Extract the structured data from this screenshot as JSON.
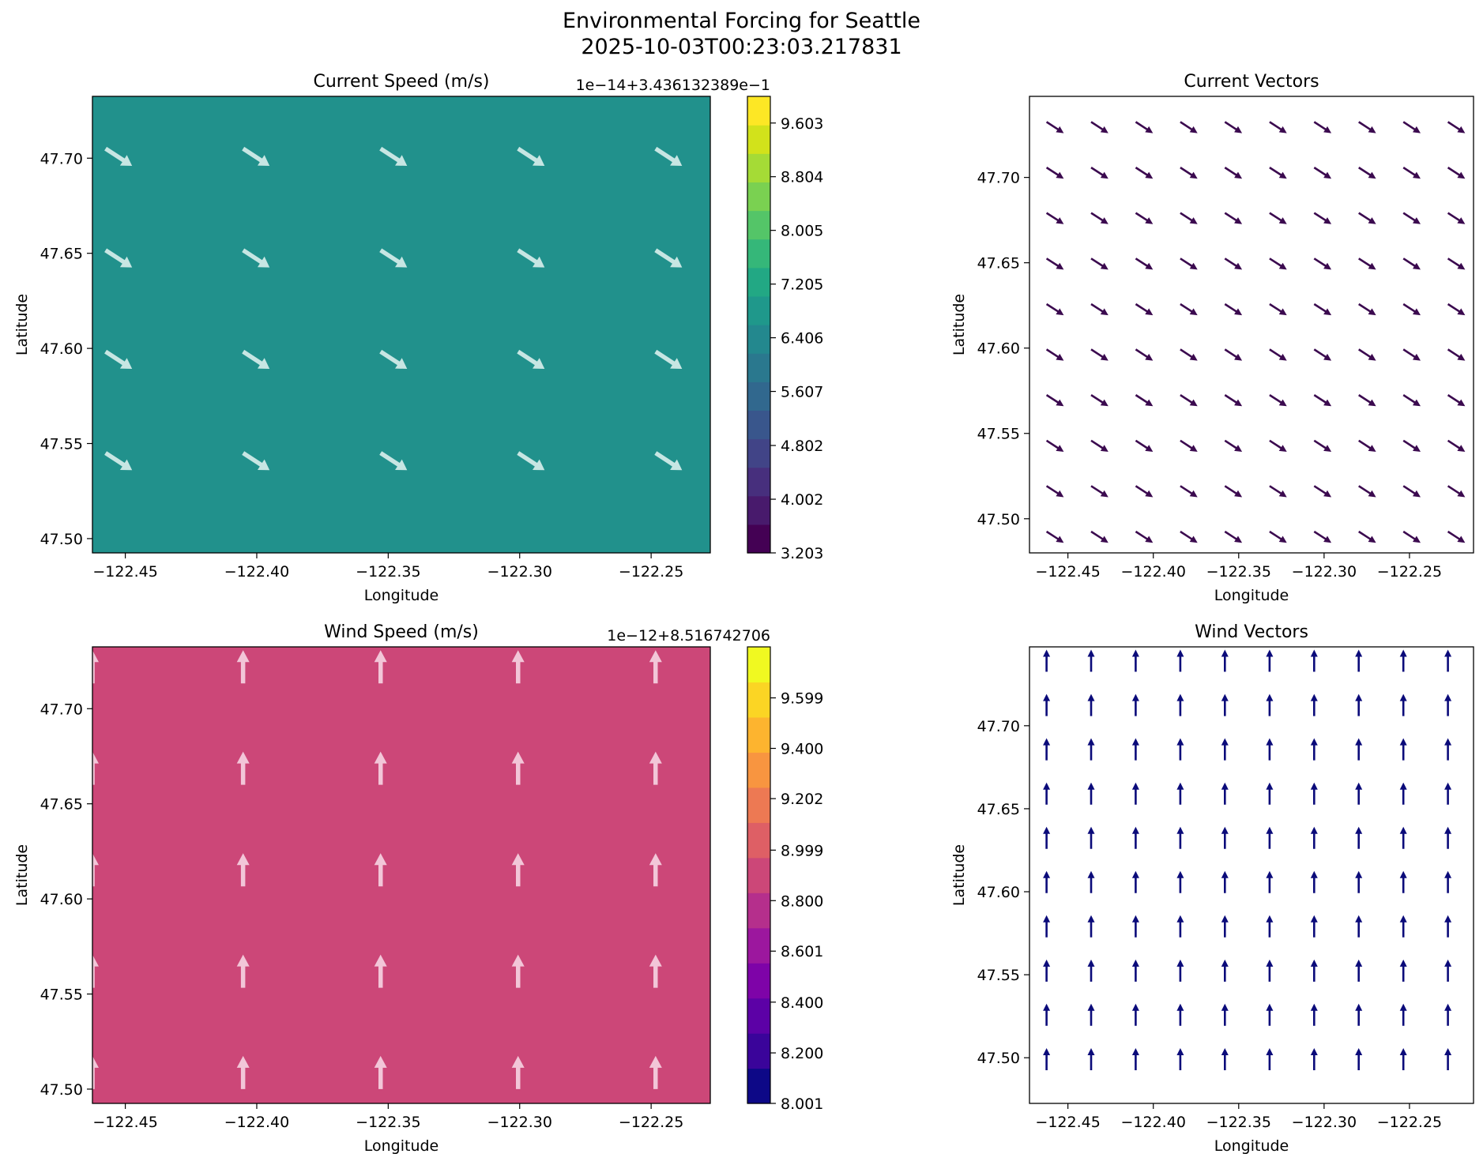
{
  "figure": {
    "title_line1": "Environmental Forcing for Seattle",
    "title_line2": "2025-10-03T00:23:03.217831"
  },
  "chart_data": [
    {
      "type": "heatmap",
      "name": "current-speed",
      "title": "Current Speed (m/s)",
      "xlabel": "Longitude",
      "ylabel": "Latitude",
      "xlim": [
        -122.4625,
        -122.2275
      ],
      "ylim": [
        47.4925,
        47.7325
      ],
      "xticks": [
        -122.45,
        -122.4,
        -122.35,
        -122.3,
        -122.25
      ],
      "xtick_labels": [
        "−122.45",
        "−122.40",
        "−122.35",
        "−122.30",
        "−122.25"
      ],
      "yticks": [
        47.5,
        47.55,
        47.6,
        47.65,
        47.7
      ],
      "ytick_labels": [
        "47.50",
        "47.55",
        "47.60",
        "47.65",
        "47.70"
      ],
      "field_color": "#21918c",
      "arrow_color": "#c7e6e3",
      "vector_direction": "east-southeast",
      "arrows_lon": [
        -122.4575,
        -122.4052,
        -122.3529,
        -122.3006,
        -122.2483
      ],
      "arrows_lat": [
        47.705,
        47.6516,
        47.5983,
        47.545
      ],
      "colorbar": {
        "offset_label": "1e−14+3.436132389e−1",
        "tick_labels": [
          "3.203",
          "4.002",
          "4.802",
          "5.607",
          "6.406",
          "7.205",
          "8.005",
          "8.804",
          "9.603"
        ],
        "tick_values": [
          3.203,
          4.002,
          4.802,
          5.607,
          6.406,
          7.205,
          8.005,
          8.804,
          9.603
        ],
        "range": [
          3.203,
          10.0
        ],
        "colors": [
          "#440154",
          "#481a6c",
          "#472f7d",
          "#414487",
          "#39568c",
          "#31688e",
          "#2a788e",
          "#23888e",
          "#1f988b",
          "#22a884",
          "#35b779",
          "#54c568",
          "#7ad151",
          "#a5db36",
          "#d2e21b",
          "#fde725"
        ]
      }
    },
    {
      "type": "vector-field",
      "name": "current-vectors",
      "title": "Current Vectors",
      "xlabel": "Longitude",
      "ylabel": "Latitude",
      "xlim": [
        -122.4725,
        -122.2125
      ],
      "ylim": [
        47.48,
        47.7475
      ],
      "xticks": [
        -122.45,
        -122.4,
        -122.35,
        -122.3,
        -122.25
      ],
      "xtick_labels": [
        "−122.45",
        "−122.40",
        "−122.35",
        "−122.30",
        "−122.25"
      ],
      "yticks": [
        47.5,
        47.55,
        47.6,
        47.65,
        47.7
      ],
      "ytick_labels": [
        "47.50",
        "47.55",
        "47.60",
        "47.65",
        "47.70"
      ],
      "arrow_color": "#3b0a4f",
      "vector_direction": "east-southeast",
      "arrows_lon": [
        -122.4625,
        -122.4364,
        -122.4103,
        -122.3842,
        -122.3581,
        -122.3319,
        -122.3058,
        -122.2797,
        -122.2536,
        -122.2275
      ],
      "arrows_lat": [
        47.4925,
        47.5192,
        47.5458,
        47.5725,
        47.5992,
        47.6258,
        47.6525,
        47.6792,
        47.7058,
        47.7325
      ]
    },
    {
      "type": "heatmap",
      "name": "wind-speed",
      "title": "Wind Speed (m/s)",
      "xlabel": "Longitude",
      "ylabel": "Latitude",
      "xlim": [
        -122.4625,
        -122.2275
      ],
      "ylim": [
        47.4925,
        47.7325
      ],
      "xticks": [
        -122.45,
        -122.4,
        -122.35,
        -122.3,
        -122.25
      ],
      "xtick_labels": [
        "−122.45",
        "−122.40",
        "−122.35",
        "−122.30",
        "−122.25"
      ],
      "yticks": [
        47.5,
        47.55,
        47.6,
        47.65,
        47.7
      ],
      "ytick_labels": [
        "47.50",
        "47.55",
        "47.60",
        "47.65",
        "47.70"
      ],
      "field_color": "#cc4778",
      "arrow_color": "#f2c6d8",
      "vector_direction": "north",
      "arrows_lon": [
        -122.4625,
        -122.4052,
        -122.3529,
        -122.3006,
        -122.2483
      ],
      "arrows_lat": [
        47.5,
        47.5533,
        47.6066,
        47.66,
        47.7133
      ],
      "colorbar": {
        "offset_label": "1e−12+8.516742706",
        "tick_labels": [
          "8.001",
          "8.200",
          "8.400",
          "8.601",
          "8.800",
          "8.999",
          "9.202",
          "9.400",
          "9.599"
        ],
        "tick_values": [
          8.001,
          8.2,
          8.4,
          8.601,
          8.8,
          8.999,
          9.202,
          9.4,
          9.599
        ],
        "range": [
          8.001,
          9.8
        ],
        "colors": [
          "#0d0887",
          "#3a049a",
          "#5c01a6",
          "#7e03a8",
          "#9c179e",
          "#b52f8c",
          "#cc4778",
          "#de5f65",
          "#ed7953",
          "#f89540",
          "#fdb42f",
          "#fbd524",
          "#f0f921"
        ]
      }
    },
    {
      "type": "vector-field",
      "name": "wind-vectors",
      "title": "Wind Vectors",
      "xlabel": "Longitude",
      "ylabel": "Latitude",
      "xlim": [
        -122.4725,
        -122.2125
      ],
      "ylim": [
        47.4725,
        47.7475
      ],
      "xticks": [
        -122.45,
        -122.4,
        -122.35,
        -122.3,
        -122.25
      ],
      "xtick_labels": [
        "−122.45",
        "−122.40",
        "−122.35",
        "−122.30",
        "−122.25"
      ],
      "yticks": [
        47.5,
        47.55,
        47.6,
        47.65,
        47.7
      ],
      "ytick_labels": [
        "47.50",
        "47.55",
        "47.60",
        "47.65",
        "47.70"
      ],
      "arrow_color": "#0b0b7a",
      "vector_direction": "north",
      "arrows_lon": [
        -122.4625,
        -122.4364,
        -122.4103,
        -122.3842,
        -122.3581,
        -122.3319,
        -122.3058,
        -122.2797,
        -122.2536,
        -122.2275
      ],
      "arrows_lat": [
        47.4925,
        47.5192,
        47.5458,
        47.5725,
        47.5992,
        47.6258,
        47.6525,
        47.6792,
        47.7058,
        47.7325
      ]
    }
  ]
}
